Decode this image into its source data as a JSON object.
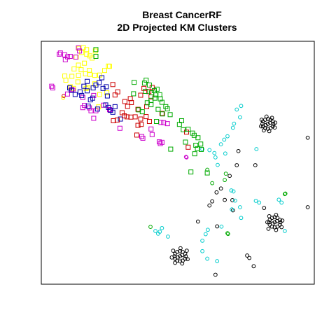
{
  "chart_data": {
    "type": "scatter",
    "title": "Breast CancerRF",
    "subtitle": "2D Projected KM Clusters",
    "xlabel": "",
    "ylabel": "",
    "axes_shown": false,
    "ticks_shown": false,
    "grid": false,
    "legend": "none",
    "xlim": [
      0,
      100
    ],
    "ylim": [
      0,
      100
    ],
    "series": [
      {
        "color": "#000000",
        "marker": "circle",
        "points": [
          [
            84.0,
            67.7
          ],
          [
            83.0,
            68.0
          ],
          [
            82.0,
            67.7
          ],
          [
            81.2,
            67.0
          ],
          [
            81.0,
            66.0
          ],
          [
            81.2,
            65.0
          ],
          [
            82.0,
            64.3
          ],
          [
            83.0,
            64.0
          ],
          [
            84.0,
            64.3
          ],
          [
            84.8,
            65.0
          ],
          [
            85.0,
            66.0
          ],
          [
            84.8,
            67.0
          ],
          [
            83.0,
            66.0
          ],
          [
            83.8,
            66.5
          ],
          [
            82.2,
            65.5
          ],
          [
            84.5,
            68.5
          ],
          [
            82.5,
            69.0
          ],
          [
            80.7,
            67.7
          ],
          [
            80.5,
            65.0
          ],
          [
            81.5,
            63.3
          ],
          [
            83.5,
            63.0
          ],
          [
            85.5,
            64.5
          ],
          [
            85.7,
            66.5
          ],
          [
            87.4,
            24.5
          ],
          [
            86.5,
            23.7
          ],
          [
            85.5,
            23.4
          ],
          [
            84.5,
            23.7
          ],
          [
            83.7,
            24.5
          ],
          [
            83.5,
            25.5
          ],
          [
            83.7,
            26.5
          ],
          [
            84.5,
            27.3
          ],
          [
            85.5,
            27.6
          ],
          [
            86.5,
            27.3
          ],
          [
            87.4,
            26.5
          ],
          [
            87.6,
            25.5
          ],
          [
            85.5,
            25.5
          ],
          [
            86.3,
            26.0
          ],
          [
            84.8,
            25.0
          ],
          [
            88.0,
            23.5
          ],
          [
            86.0,
            22.3
          ],
          [
            83.2,
            22.8
          ],
          [
            82.8,
            25.5
          ],
          [
            83.5,
            28.0
          ],
          [
            86.0,
            28.5
          ],
          [
            88.3,
            26.2
          ],
          [
            52.7,
            10.5
          ],
          [
            51.8,
            9.7
          ],
          [
            50.8,
            9.4
          ],
          [
            49.8,
            9.7
          ],
          [
            49.0,
            10.5
          ],
          [
            48.8,
            11.5
          ],
          [
            49.0,
            12.5
          ],
          [
            49.8,
            13.3
          ],
          [
            50.8,
            13.6
          ],
          [
            51.8,
            13.3
          ],
          [
            52.7,
            12.5
          ],
          [
            52.9,
            11.5
          ],
          [
            50.8,
            11.5
          ],
          [
            51.6,
            12.0
          ],
          [
            50.0,
            11.0
          ],
          [
            53.3,
            13.8
          ],
          [
            51.0,
            14.8
          ],
          [
            48.3,
            13.8
          ],
          [
            47.8,
            11.0
          ],
          [
            49.0,
            8.8
          ],
          [
            51.6,
            8.5
          ],
          [
            53.6,
            10.3
          ],
          [
            97.6,
            60.3
          ],
          [
            72.2,
            54.8
          ],
          [
            78.4,
            49.0
          ],
          [
            71.6,
            49.0
          ],
          [
            69.0,
            44.6
          ],
          [
            65.8,
            39.4
          ],
          [
            67.2,
            34.7
          ],
          [
            64.2,
            37.8
          ],
          [
            70.0,
            34.6
          ],
          [
            61.6,
            32.4
          ],
          [
            62.6,
            34.1
          ],
          [
            81.6,
            31.4
          ],
          [
            97.6,
            31.7
          ],
          [
            70.2,
            30.4
          ],
          [
            57.4,
            25.8
          ],
          [
            64.4,
            23.8
          ],
          [
            76.2,
            10.8
          ],
          [
            75.4,
            11.8
          ],
          [
            77.8,
            7.4
          ],
          [
            63.8,
            3.9
          ]
        ]
      },
      {
        "color": "#00cccc",
        "marker": "circle",
        "points": [
          [
            73.2,
            73.4
          ],
          [
            71.6,
            71.9
          ],
          [
            72.8,
            68.7
          ],
          [
            70.6,
            66.1
          ],
          [
            70.2,
            64.4
          ],
          [
            68.2,
            60.9
          ],
          [
            67.0,
            59.5
          ],
          [
            65.8,
            57.6
          ],
          [
            63.4,
            54.0
          ],
          [
            61.6,
            55.2
          ],
          [
            59.0,
            55.6
          ],
          [
            63.8,
            52.2
          ],
          [
            67.4,
            53.8
          ],
          [
            64.6,
            49.1
          ],
          [
            78.8,
            55.6
          ],
          [
            69.6,
            38.6
          ],
          [
            70.4,
            38.2
          ],
          [
            71.0,
            34.4
          ],
          [
            69.8,
            30.8
          ],
          [
            72.8,
            31.7
          ],
          [
            73.2,
            27.3
          ],
          [
            78.6,
            34.3
          ],
          [
            79.8,
            33.6
          ],
          [
            87.0,
            34.8
          ],
          [
            88.0,
            33.6
          ],
          [
            89.2,
            21.9
          ],
          [
            66.0,
            23.7
          ],
          [
            61.0,
            22.4
          ],
          [
            60.2,
            20.6
          ],
          [
            59.0,
            17.9
          ],
          [
            64.4,
            9.5
          ],
          [
            60.8,
            10.5
          ],
          [
            59.0,
            13.6
          ],
          [
            44.2,
            23.1
          ],
          [
            43.4,
            21.6
          ],
          [
            42.8,
            20.8
          ],
          [
            46.4,
            19.6
          ],
          [
            41.8,
            21.9
          ]
        ]
      },
      {
        "color": "#00aa00",
        "marker": "circle",
        "points": [
          [
            67.6,
            45.5
          ],
          [
            60.8,
            47.1
          ],
          [
            62.6,
            41.6
          ],
          [
            67.2,
            42.9
          ],
          [
            89.2,
            37.1
          ],
          [
            89.4,
            37.3
          ],
          [
            40.0,
            23.6
          ],
          [
            68.2,
            21.0
          ],
          [
            68.4,
            20.7
          ]
        ]
      },
      {
        "color": "#cc00cc",
        "marker": "circle",
        "points": [
          [
            53.0,
            52.4
          ],
          [
            53.2,
            52.2
          ]
        ]
      },
      {
        "color": "#ffff00",
        "marker": "circle",
        "points": [
          [
            8.0,
            76.7
          ]
        ]
      },
      {
        "color": "#cc0000",
        "marker": "circle",
        "points": [
          [
            8.2,
            77.5
          ]
        ]
      },
      {
        "color": "#ffff00",
        "marker": "square",
        "points": [
          [
            13.8,
            97.1
          ],
          [
            15.4,
            97.4
          ],
          [
            16.6,
            96.6
          ],
          [
            14.8,
            95.4
          ],
          [
            12.8,
            93.5
          ],
          [
            13.6,
            90.2
          ],
          [
            16.6,
            94.7
          ],
          [
            17.8,
            94.0
          ],
          [
            15.8,
            91.0
          ],
          [
            19.8,
            96.0
          ],
          [
            18.6,
            93.1
          ],
          [
            14.6,
            88.3
          ],
          [
            12.0,
            88.6
          ],
          [
            8.6,
            85.7
          ],
          [
            9.0,
            84.0
          ],
          [
            10.6,
            81.3
          ],
          [
            11.8,
            80.6
          ],
          [
            13.6,
            86.0
          ],
          [
            16.2,
            86.6
          ],
          [
            17.8,
            86.4
          ],
          [
            19.6,
            86.0
          ],
          [
            21.4,
            86.1
          ],
          [
            23.2,
            88.0
          ],
          [
            24.6,
            89.8
          ],
          [
            25.0,
            89.7
          ],
          [
            13.4,
            83.3
          ],
          [
            16.4,
            80.6
          ],
          [
            17.0,
            81.0
          ],
          [
            19.6,
            82.5
          ],
          [
            21.4,
            78.1
          ],
          [
            21.0,
            73.0
          ],
          [
            24.0,
            78.8
          ],
          [
            11.2,
            85.6
          ],
          [
            17.6,
            88.0
          ]
        ]
      },
      {
        "color": "#cc00cc",
        "marker": "square",
        "points": [
          [
            6.6,
            94.7
          ],
          [
            7.0,
            95.2
          ],
          [
            8.6,
            94.4
          ],
          [
            9.6,
            93.6
          ],
          [
            10.6,
            93.8
          ],
          [
            12.6,
            93.5
          ],
          [
            13.6,
            97.3
          ],
          [
            14.0,
            96.0
          ],
          [
            8.8,
            92.4
          ],
          [
            3.8,
            81.5
          ],
          [
            4.2,
            80.8
          ],
          [
            11.2,
            80.2
          ],
          [
            11.6,
            79.8
          ],
          [
            9.6,
            78.3
          ],
          [
            15.2,
            76.9
          ],
          [
            19.2,
            77.7
          ],
          [
            15.8,
            73.6
          ],
          [
            15.2,
            72.7
          ],
          [
            17.6,
            72.6
          ],
          [
            18.2,
            71.4
          ],
          [
            20.0,
            71.4
          ],
          [
            19.2,
            68.3
          ],
          [
            22.8,
            73.7
          ],
          [
            25.0,
            71.9
          ],
          [
            25.2,
            71.6
          ],
          [
            28.8,
            64.2
          ],
          [
            36.8,
            60.8
          ],
          [
            37.2,
            60.1
          ],
          [
            40.6,
            61.6
          ],
          [
            40.2,
            63.9
          ],
          [
            43.8,
            66.6
          ],
          [
            44.8,
            66.5
          ],
          [
            46.2,
            66.1
          ],
          [
            43.6,
            57.9
          ],
          [
            43.2,
            58.6
          ],
          [
            44.2,
            58.4
          ]
        ]
      },
      {
        "color": "#0000aa",
        "marker": "square",
        "points": [
          [
            16.8,
            83.5
          ],
          [
            10.4,
            80.8
          ],
          [
            11.0,
            79.8
          ],
          [
            12.4,
            78.1
          ],
          [
            14.8,
            77.7
          ],
          [
            14.2,
            79.2
          ],
          [
            15.6,
            81.5
          ],
          [
            16.8,
            79.6
          ],
          [
            18.8,
            76.6
          ],
          [
            18.0,
            75.9
          ],
          [
            22.6,
            80.6
          ],
          [
            23.8,
            81.3
          ],
          [
            24.2,
            77.5
          ],
          [
            17.2,
            73.3
          ],
          [
            20.6,
            72.1
          ],
          [
            23.6,
            73.8
          ],
          [
            24.6,
            72.8
          ],
          [
            25.4,
            71.6
          ],
          [
            27.0,
            73.1
          ],
          [
            21.2,
            83.0
          ],
          [
            22.2,
            85.0
          ],
          [
            26.2,
            70.8
          ],
          [
            29.0,
            68.0
          ],
          [
            19.0,
            80.8
          ],
          [
            20.0,
            82.0
          ]
        ]
      },
      {
        "color": "#cc0000",
        "marker": "square",
        "points": [
          [
            26.2,
            82.2
          ],
          [
            28.0,
            79.2
          ],
          [
            27.0,
            77.9
          ],
          [
            30.6,
            75.2
          ],
          [
            32.6,
            76.4
          ],
          [
            31.6,
            73.2
          ],
          [
            33.0,
            74.8
          ],
          [
            29.6,
            70.6
          ],
          [
            31.4,
            68.9
          ],
          [
            36.4,
            77.8
          ],
          [
            35.4,
            72.0
          ],
          [
            37.6,
            80.6
          ],
          [
            39.4,
            79.3
          ],
          [
            40.6,
            81.0
          ],
          [
            40.2,
            77.1
          ],
          [
            38.6,
            73.1
          ],
          [
            39.6,
            67.0
          ],
          [
            27.8,
            67.6
          ],
          [
            26.4,
            67.3
          ],
          [
            30.4,
            69.3
          ],
          [
            32.8,
            68.8
          ],
          [
            34.4,
            68.9
          ],
          [
            36.4,
            68.0
          ],
          [
            38.4,
            69.0
          ],
          [
            36.6,
            65.8
          ],
          [
            35.0,
            61.4
          ],
          [
            35.4,
            65.4
          ],
          [
            44.2,
            70.3
          ],
          [
            53.2,
            62.6
          ],
          [
            53.8,
            56.4
          ]
        ]
      },
      {
        "color": "#00aa00",
        "marker": "square",
        "points": [
          [
            20.0,
            96.6
          ],
          [
            20.0,
            93.8
          ],
          [
            33.8,
            78.4
          ],
          [
            34.0,
            83.1
          ],
          [
            38.4,
            84.0
          ],
          [
            37.8,
            82.8
          ],
          [
            39.6,
            82.0
          ],
          [
            38.2,
            79.4
          ],
          [
            40.4,
            78.8
          ],
          [
            41.4,
            79.7
          ],
          [
            42.4,
            80.3
          ],
          [
            42.0,
            77.9
          ],
          [
            43.4,
            78.0
          ],
          [
            40.2,
            75.7
          ],
          [
            38.8,
            74.7
          ],
          [
            40.2,
            73.9
          ],
          [
            41.6,
            76.6
          ],
          [
            43.6,
            76.3
          ],
          [
            44.2,
            74.9
          ],
          [
            45.6,
            73.1
          ],
          [
            42.8,
            72.0
          ],
          [
            44.4,
            70.1
          ],
          [
            47.2,
            69.8
          ],
          [
            51.4,
            67.3
          ],
          [
            50.6,
            65.8
          ],
          [
            52.0,
            63.6
          ],
          [
            53.8,
            63.8
          ],
          [
            55.4,
            62.2
          ],
          [
            56.0,
            61.3
          ],
          [
            57.4,
            60.3
          ],
          [
            56.6,
            57.2
          ],
          [
            58.4,
            57.7
          ],
          [
            56.2,
            53.7
          ],
          [
            57.2,
            55.8
          ],
          [
            58.6,
            55.5
          ],
          [
            52.8,
            58.5
          ],
          [
            47.4,
            55.6
          ],
          [
            54.8,
            46.2
          ],
          [
            60.8,
            45.8
          ],
          [
            46.2,
            72.2
          ],
          [
            37.0,
            71.0
          ],
          [
            35.6,
            71.8
          ],
          [
            42.2,
            67.0
          ]
        ]
      }
    ]
  }
}
